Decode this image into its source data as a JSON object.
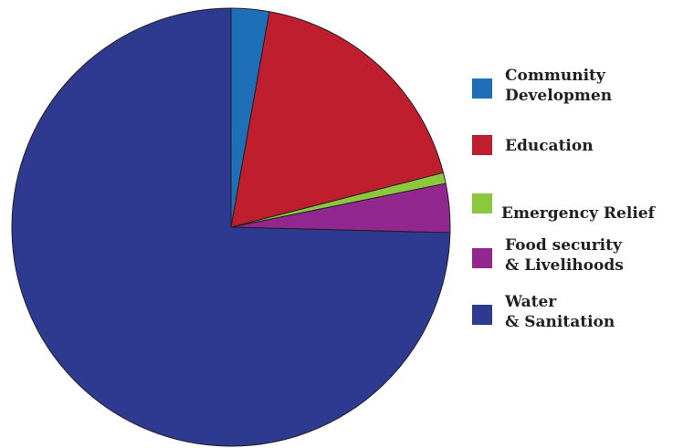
{
  "chart_data": {
    "type": "pie",
    "title": "",
    "legend_position": "right",
    "slices": [
      {
        "label_lines": [
          "Community",
          "Developmen"
        ],
        "value": 2.8,
        "color": "#1f6fb8"
      },
      {
        "label_lines": [
          "Education"
        ],
        "value": 18.2,
        "color": "#be1e2d"
      },
      {
        "label_lines": [
          "Emergency Relief"
        ],
        "value": 0.8,
        "color": "#8dc63f"
      },
      {
        "label_lines": [
          "Food security",
          "& Livelihoods"
        ],
        "value": 3.6,
        "color": "#92278f"
      },
      {
        "label_lines": [
          "Water",
          "& Sanitation"
        ],
        "value": 74.6,
        "color": "#2e3a8f"
      }
    ]
  }
}
